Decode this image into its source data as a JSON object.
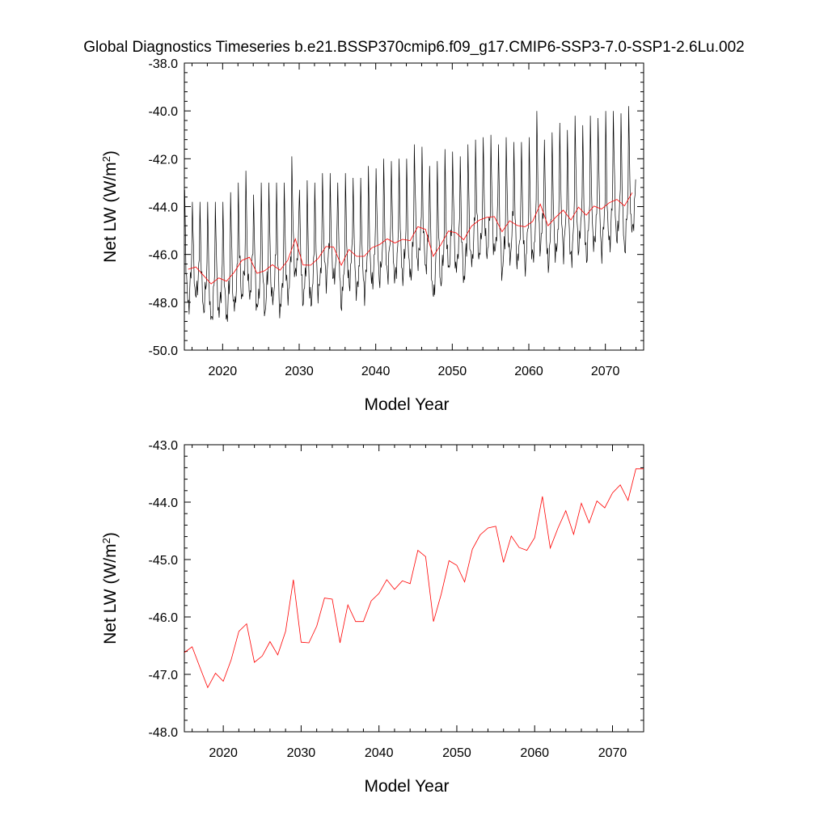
{
  "title": "Global Diagnostics Timeseries b.e21.BSSP370cmip6.f09_g17.CMIP6-SSP3-7.0-SSP1-2.6Lu.002",
  "colors": {
    "monthly": "#000000",
    "annual": "#ff0000",
    "axes": "#000000"
  },
  "chart_data": [
    {
      "type": "line",
      "xlabel": "Model Year",
      "ylabel": "Net LW",
      "ylabel_unit_prefix": "(W/m",
      "ylabel_unit_sup": "2",
      "ylabel_unit_suffix": ")",
      "xlim": [
        2015,
        2075
      ],
      "ylim": [
        -50,
        -38
      ],
      "xticks": [
        2020,
        2030,
        2040,
        2050,
        2060,
        2070
      ],
      "xtick_labels": [
        "2020",
        "2030",
        "2040",
        "2050",
        "2060",
        "2070"
      ],
      "yticks": [
        -50,
        -48,
        -46,
        -44,
        -42,
        -40,
        -38
      ],
      "ytick_labels": [
        "-50.0",
        "-48.0",
        "-46.0",
        "-44.0",
        "-42.0",
        "-40.0",
        "-38.0"
      ],
      "monthly_series": {
        "start_year": 2015,
        "annual_means": [
          -46.62,
          -46.52,
          -46.88,
          -47.23,
          -46.98,
          -47.12,
          -46.75,
          -46.25,
          -46.12,
          -46.79,
          -46.68,
          -46.43,
          -46.66,
          -46.25,
          -45.35,
          -46.44,
          -46.45,
          -46.16,
          -45.67,
          -45.69,
          -46.45,
          -45.79,
          -46.08,
          -46.08,
          -45.72,
          -45.59,
          -45.35,
          -45.52,
          -45.37,
          -45.42,
          -44.84,
          -44.95,
          -46.08,
          -45.6,
          -45.02,
          -45.1,
          -45.39,
          -44.82,
          -44.57,
          -44.45,
          -44.42,
          -45.05,
          -44.59,
          -44.79,
          -44.84,
          -44.62,
          -43.9,
          -44.8,
          -44.45,
          -44.15,
          -44.56,
          -44.02,
          -44.36,
          -43.98,
          -44.1,
          -43.84,
          -43.7,
          -43.97,
          -43.42
        ],
        "peak_values": [
          -43.3,
          -43.8,
          -43.8,
          -43.8,
          -43.8,
          -43.8,
          -43.4,
          -43.0,
          -42.5,
          -43.5,
          -43.0,
          -43.0,
          -43.0,
          -43.0,
          -41.9,
          -43.3,
          -42.9,
          -43.0,
          -42.6,
          -42.6,
          -43.0,
          -42.6,
          -42.8,
          -42.8,
          -42.3,
          -42.4,
          -42.0,
          -42.1,
          -42.0,
          -42.0,
          -41.4,
          -41.5,
          -42.3,
          -42.1,
          -41.6,
          -41.7,
          -41.9,
          -41.4,
          -41.2,
          -41.1,
          -41.0,
          -41.4,
          -41.1,
          -41.3,
          -41.3,
          -41.1,
          -40.0,
          -41.2,
          -40.9,
          -40.5,
          -40.8,
          -40.2,
          -40.6,
          -40.2,
          -40.3,
          -40.0,
          -40.0,
          -40.1,
          -39.8
        ]
      },
      "series": [
        {
          "kind": "monthly",
          "color": "#000000"
        },
        {
          "kind": "annual",
          "color": "#ff0000"
        }
      ]
    },
    {
      "type": "line",
      "xlabel": "Model Year",
      "ylabel": "Net LW",
      "ylabel_unit_prefix": "(W/m",
      "ylabel_unit_sup": "2",
      "ylabel_unit_suffix": ")",
      "xlim": [
        2015,
        2074
      ],
      "ylim": [
        -48,
        -43
      ],
      "xticks": [
        2020,
        2030,
        2040,
        2050,
        2060,
        2070
      ],
      "xtick_labels": [
        "2020",
        "2030",
        "2040",
        "2050",
        "2060",
        "2070"
      ],
      "yticks": [
        -48,
        -47,
        -46,
        -45,
        -44,
        -43
      ],
      "ytick_labels": [
        "-48.0",
        "-47.0",
        "-46.0",
        "-45.0",
        "-44.0",
        "-43.0"
      ],
      "series": [
        {
          "color": "#ff0000",
          "x": [
            2015,
            2016,
            2017,
            2018,
            2019,
            2020,
            2021,
            2022,
            2023,
            2024,
            2025,
            2026,
            2027,
            2028,
            2029,
            2030,
            2031,
            2032,
            2033,
            2034,
            2035,
            2036,
            2037,
            2038,
            2039,
            2040,
            2041,
            2042,
            2043,
            2044,
            2045,
            2046,
            2047,
            2048,
            2049,
            2050,
            2051,
            2052,
            2053,
            2054,
            2055,
            2056,
            2057,
            2058,
            2059,
            2060,
            2061,
            2062,
            2063,
            2064,
            2065,
            2066,
            2067,
            2068,
            2069,
            2070,
            2071,
            2072,
            2073,
            2074
          ],
          "y": [
            -46.62,
            -46.52,
            -46.88,
            -47.23,
            -46.98,
            -47.12,
            -46.75,
            -46.25,
            -46.12,
            -46.79,
            -46.68,
            -46.43,
            -46.66,
            -46.25,
            -45.35,
            -46.44,
            -46.45,
            -46.16,
            -45.67,
            -45.69,
            -46.45,
            -45.79,
            -46.08,
            -46.08,
            -45.72,
            -45.59,
            -45.35,
            -45.52,
            -45.37,
            -45.42,
            -44.84,
            -44.95,
            -46.08,
            -45.6,
            -45.02,
            -45.1,
            -45.39,
            -44.82,
            -44.57,
            -44.45,
            -44.42,
            -45.05,
            -44.59,
            -44.79,
            -44.84,
            -44.62,
            -43.9,
            -44.8,
            -44.45,
            -44.15,
            -44.56,
            -44.02,
            -44.36,
            -43.98,
            -44.1,
            -43.84,
            -43.7,
            -43.97,
            -43.42,
            -43.42
          ]
        }
      ]
    }
  ]
}
